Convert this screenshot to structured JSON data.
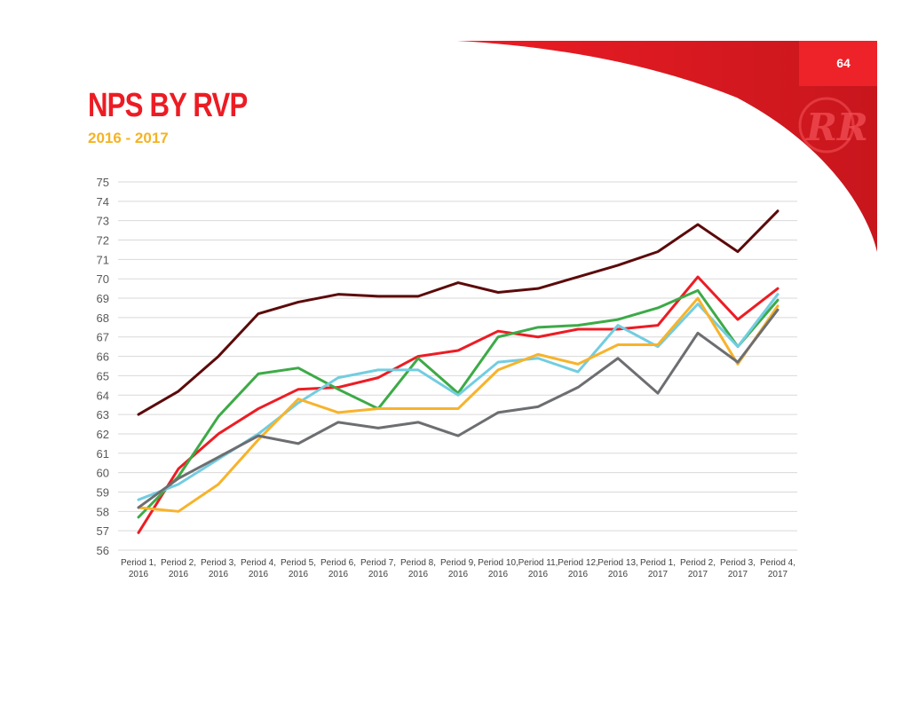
{
  "page": {
    "number": "64",
    "title": "NPS BY RVP",
    "subtitle": "2016 - 2017",
    "colors": {
      "brand_red": "#ec1c24",
      "brand_yellow": "#f5b324"
    }
  },
  "logo": {
    "text": "RR",
    "icon": "logo-rr-icon"
  },
  "chart_data": {
    "type": "line",
    "title": "",
    "xlabel": "",
    "ylabel": "",
    "ylim": [
      56,
      75
    ],
    "ytick_step": 1,
    "grid": true,
    "legend": "none",
    "categories": [
      [
        "Period 1,",
        "2016"
      ],
      [
        "Period 2,",
        "2016"
      ],
      [
        "Period 3,",
        "2016"
      ],
      [
        "Period 4,",
        "2016"
      ],
      [
        "Period 5,",
        "2016"
      ],
      [
        "Period 6,",
        "2016"
      ],
      [
        "Period 7,",
        "2016"
      ],
      [
        "Period 8,",
        "2016"
      ],
      [
        "Period 9,",
        "2016"
      ],
      [
        "Period 10,",
        "2016"
      ],
      [
        "Period 11,",
        "2016"
      ],
      [
        "Period 12,",
        "2016"
      ],
      [
        "Period 13,",
        "2016"
      ],
      [
        "Period 1,",
        "2017"
      ],
      [
        "Period 2,",
        "2017"
      ],
      [
        "Period 3,",
        "2017"
      ],
      [
        "Period 4,",
        "2017"
      ]
    ],
    "series": [
      {
        "color": "#5c0a0a",
        "values": [
          63.0,
          64.2,
          66.0,
          68.2,
          68.8,
          69.2,
          69.1,
          69.1,
          69.8,
          69.3,
          69.5,
          70.1,
          70.7,
          71.4,
          72.8,
          71.4,
          73.5
        ]
      },
      {
        "color": "#ed1c24",
        "values": [
          56.9,
          60.2,
          62.0,
          63.3,
          64.3,
          64.4,
          64.9,
          66.0,
          66.3,
          67.3,
          67.0,
          67.4,
          67.4,
          67.6,
          70.1,
          67.9,
          69.5
        ]
      },
      {
        "color": "#3daa47",
        "values": [
          57.7,
          59.8,
          62.9,
          65.1,
          65.4,
          64.3,
          63.3,
          65.9,
          64.1,
          67.0,
          67.5,
          67.6,
          67.9,
          68.5,
          69.4,
          66.5,
          68.9
        ]
      },
      {
        "color": "#72cde0",
        "values": [
          58.6,
          59.4,
          60.7,
          62.0,
          63.6,
          64.9,
          65.3,
          65.3,
          64.0,
          65.7,
          65.9,
          65.2,
          67.6,
          66.5,
          68.7,
          66.5,
          69.2
        ]
      },
      {
        "color": "#f7b32b",
        "values": [
          58.2,
          58.0,
          59.4,
          61.7,
          63.8,
          63.1,
          63.3,
          63.3,
          63.3,
          65.3,
          66.1,
          65.6,
          66.6,
          66.6,
          69.0,
          65.6,
          68.6
        ]
      },
      {
        "color": "#6d6e71",
        "values": [
          58.2,
          59.7,
          60.8,
          61.9,
          61.5,
          62.6,
          62.3,
          62.6,
          61.9,
          63.1,
          63.4,
          64.4,
          65.9,
          64.1,
          67.2,
          65.7,
          68.4
        ]
      }
    ]
  }
}
